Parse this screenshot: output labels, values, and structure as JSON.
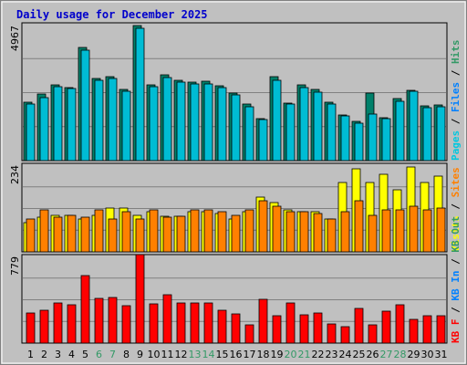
{
  "chart_data": {
    "type": "bar",
    "title": "Daily usage for December 2025",
    "categories": [
      "1",
      "2",
      "3",
      "4",
      "5",
      "6",
      "7",
      "8",
      "9",
      "10",
      "11",
      "12",
      "13",
      "14",
      "15",
      "16",
      "17",
      "18",
      "19",
      "20",
      "21",
      "22",
      "23",
      "24",
      "25",
      "26",
      "27",
      "28",
      "29",
      "30",
      "31"
    ],
    "weekend_days": [
      "6",
      "7",
      "13",
      "14",
      "20",
      "21",
      "27",
      "28"
    ],
    "weekend_label_color": "#339966",
    "weekday_label_color": "#000000",
    "panels": [
      {
        "id": "hits",
        "ymax_label": "4967",
        "ymax": 4967,
        "legend": [
          {
            "text": "Pages",
            "color": "#00c8e0"
          },
          {
            "text": " / ",
            "color": "#000000"
          },
          {
            "text": "Files",
            "color": "#0080ff"
          },
          {
            "text": " / ",
            "color": "#000000"
          },
          {
            "text": "Hits",
            "color": "#339966"
          }
        ],
        "series": [
          {
            "name": "Hits",
            "color": "#00806a",
            "values": [
              2150,
              2450,
              2800,
              2700,
              4200,
              3050,
              3100,
              2620,
              5000,
              2820,
              3170,
              2960,
              2910,
              2930,
              2760,
              2500,
              2080,
              1540,
              3100,
              2140,
              2820,
              2630,
              2160,
              1700,
              1440,
              2500,
              1590,
              2310,
              2600,
              2020,
              2070
            ]
          },
          {
            "name": "Files",
            "color": "#00bcd4",
            "values": [
              2110,
              2340,
              2740,
              2660,
              4080,
              2960,
              3040,
              2570,
              4900,
              2730,
              3070,
              2900,
              2850,
              2830,
              2690,
              2440,
              2000,
              1510,
              2980,
              2080,
              2710,
              2540,
              2090,
              1650,
              1380,
              1710,
              1540,
              2200,
              2560,
              1960,
              2000
            ]
          }
        ]
      },
      {
        "id": "visits",
        "ymax_label": "234",
        "ymax": 234,
        "legend": [
          {
            "text": "Visits",
            "color": "#ffff00"
          },
          {
            "text": " / ",
            "color": "#000000"
          },
          {
            "text": "Sites",
            "color": "#ff8000"
          }
        ],
        "series": [
          {
            "name": "Visits",
            "color": "#ffff00",
            "values": [
              80,
              95,
              100,
              100,
              90,
              100,
              120,
              120,
              100,
              110,
              97,
              97,
              110,
              110,
              105,
              90,
              110,
              150,
              135,
              115,
              110,
              110,
              90,
              190,
              230,
              190,
              215,
              170,
              235,
              190,
              210
            ]
          },
          {
            "name": "Sites",
            "color": "#ff8000",
            "values": [
              90,
              115,
              95,
              100,
              95,
              115,
              90,
              110,
              90,
              115,
              95,
              97,
              115,
              115,
              110,
              100,
              115,
              140,
              125,
              110,
              110,
              105,
              90,
              110,
              140,
              100,
              115,
              115,
              125,
              115,
              120
            ]
          }
        ]
      },
      {
        "id": "kb",
        "ymax_label": "779",
        "ymax": 779,
        "legend": [
          {
            "text": "KB F",
            "color": "#ff0000"
          },
          {
            "text": " / ",
            "color": "#000000"
          },
          {
            "text": "KB In",
            "color": "#0080ff"
          },
          {
            "text": " / ",
            "color": "#000000"
          },
          {
            "text": "KB Out",
            "color": "#339966"
          }
        ],
        "series": [
          {
            "name": "KB F",
            "color": "#ff0000",
            "values": [
              280,
              300,
              370,
              350,
              620,
              410,
              420,
              340,
              815,
              360,
              440,
              370,
              370,
              370,
              300,
              270,
              170,
              400,
              250,
              370,
              260,
              280,
              180,
              150,
              320,
              170,
              290,
              350,
              220,
              250,
              250
            ]
          }
        ]
      }
    ]
  }
}
